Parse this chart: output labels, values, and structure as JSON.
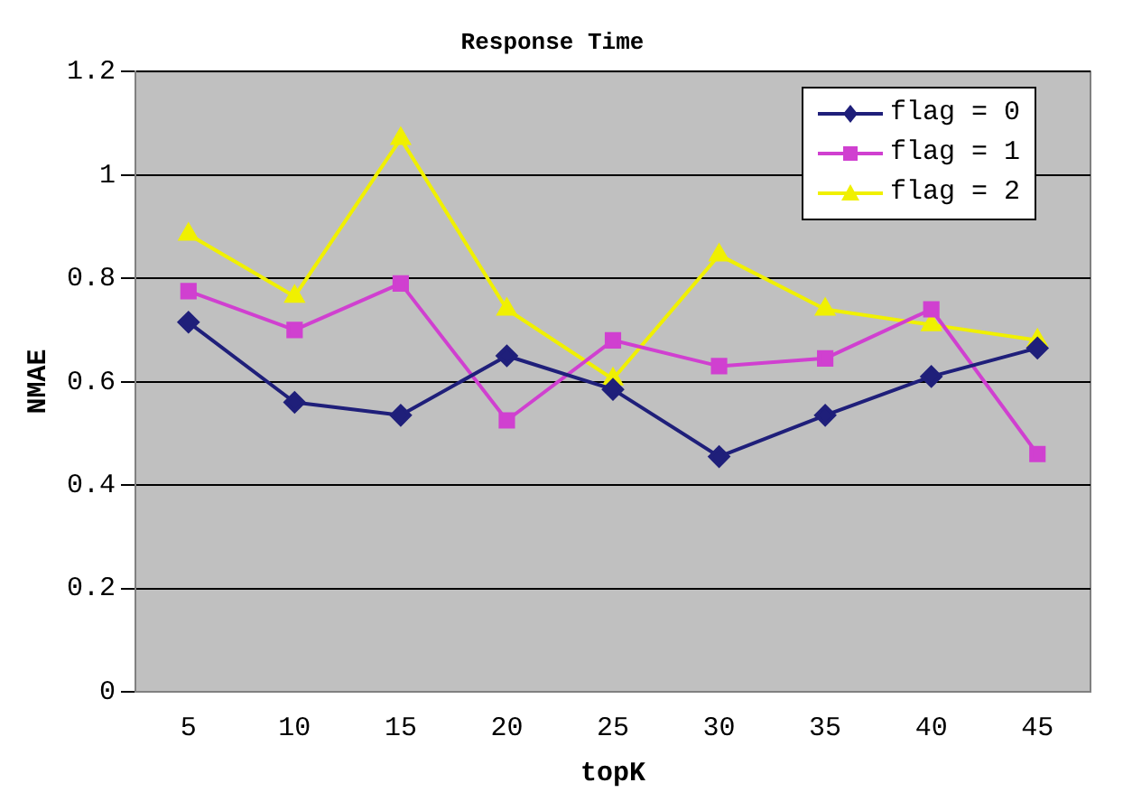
{
  "chart_data": {
    "type": "line",
    "title": "Response Time",
    "xlabel": "topK",
    "ylabel": "NMAE",
    "categories": [
      "5",
      "10",
      "15",
      "20",
      "25",
      "30",
      "35",
      "40",
      "45"
    ],
    "series": [
      {
        "name": "flag = 0",
        "color": "#1f1f7a",
        "marker": "diamond",
        "values": [
          0.715,
          0.56,
          0.535,
          0.65,
          0.585,
          0.455,
          0.535,
          0.61,
          0.665
        ]
      },
      {
        "name": "flag = 1",
        "color": "#d040d0",
        "marker": "square",
        "values": [
          0.775,
          0.7,
          0.79,
          0.525,
          0.68,
          0.63,
          0.645,
          0.74,
          0.46
        ]
      },
      {
        "name": "flag = 2",
        "color": "#f0f000",
        "marker": "triangle",
        "values": [
          0.885,
          0.765,
          1.07,
          0.74,
          0.605,
          0.845,
          0.74,
          0.71,
          0.68
        ]
      }
    ],
    "ylim": [
      0,
      1.2
    ],
    "yticks": [
      0,
      0.2,
      0.4,
      0.6,
      0.8,
      1,
      1.2
    ],
    "grid": "y",
    "legend": "top right"
  }
}
